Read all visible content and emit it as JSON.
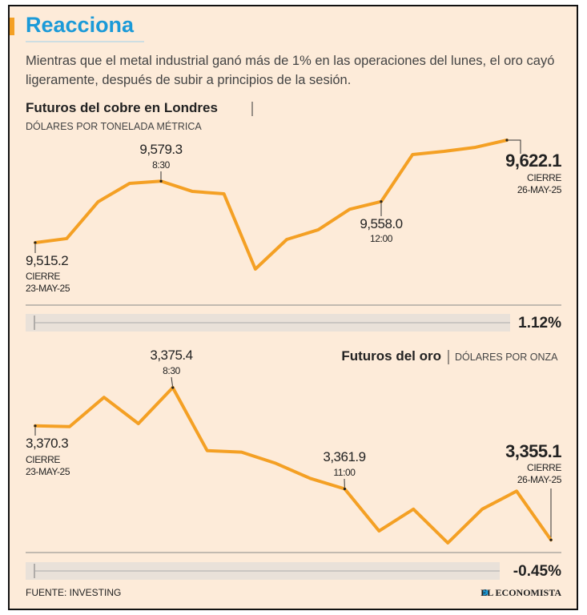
{
  "header": {
    "title": "Reacciona",
    "subtitle": "Mientras que el metal industrial ganó más de 1% en las operaciones del lunes, el oro cayó ligeramente, después de subir a principios de la sesión."
  },
  "chart_data": [
    {
      "type": "line",
      "title": "Futuros del cobre en Londres",
      "subtitle": "DÓLARES POR TONELADA MÉTRICA",
      "categories": [
        "CIERRE\n23-MAY-25",
        null,
        null,
        null,
        "8:30",
        null,
        null,
        null,
        null,
        null,
        null,
        "12:00",
        null,
        null,
        null,
        "CIERRE\n26-MAY-25"
      ],
      "values": [
        9515.2,
        9519.4,
        9557.8,
        9577.0,
        9579.3,
        9568.6,
        9566.1,
        9487.6,
        9518.5,
        9528.6,
        9550.0,
        9558.0,
        9607.1,
        9610.4,
        9614.6,
        9622.1
      ],
      "value_labels": [
        "9,515.2",
        null,
        null,
        null,
        "9,579.3",
        null,
        null,
        null,
        null,
        null,
        null,
        "9,558.0",
        null,
        null,
        null,
        "9,622.1"
      ],
      "color": "#f4a024",
      "change": "1.12%"
    },
    {
      "type": "line",
      "title": "Futuros del oro",
      "subtitle": "DÓLARES POR ONZA",
      "categories": [
        "CIERRE\n23-MAY-25",
        null,
        null,
        null,
        "8:30",
        null,
        null,
        null,
        null,
        "11:00",
        null,
        null,
        null,
        null,
        null,
        "CIERRE\n26-MAY-25"
      ],
      "values": [
        3370.3,
        3370.2,
        3374.1,
        3370.6,
        3375.4,
        3367.0,
        3366.8,
        3365.3,
        3363.3,
        3361.9,
        3356.3,
        3359.2,
        3354.7,
        3359.2,
        3361.6,
        3355.1
      ],
      "value_labels": [
        "3,370.3",
        null,
        null,
        null,
        "3,375.4",
        null,
        null,
        null,
        null,
        "3,361.9",
        null,
        null,
        null,
        null,
        null,
        "3,355.1"
      ],
      "color": "#f4a024",
      "change": "-0.45%"
    }
  ],
  "source": "FUENTE: INVESTING",
  "brand": "EL ECONOMISTA"
}
